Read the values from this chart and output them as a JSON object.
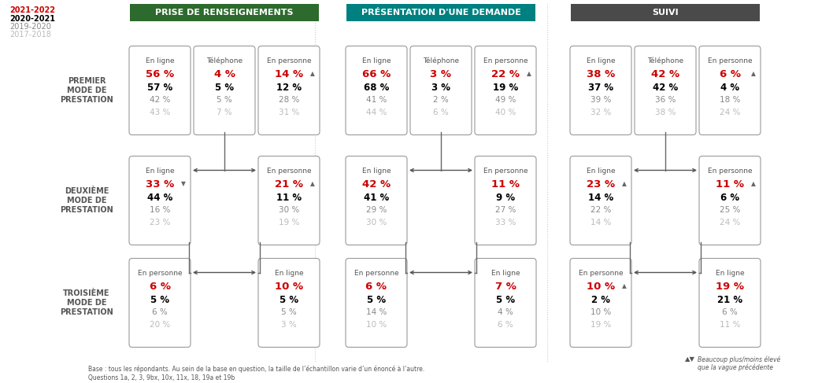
{
  "val_colors": [
    "#cc0000",
    "#000000",
    "#888888",
    "#bbbbbb"
  ],
  "row_labels": [
    "PREMIER\nMODE DE\nPRESTATION",
    "DEUXIÈME\nMODE DE\nPRESTATION",
    "TROISIÈME\nMODE DE\nPRESTATION"
  ],
  "sections": [
    {
      "title": "PRISE DE RENSEIGNEMENTS",
      "header_color": "#2d6a2d",
      "row1": [
        {
          "label": "En ligne",
          "vals": [
            "56 %",
            "57 %",
            "42 %",
            "43 %"
          ],
          "arrow": null
        },
        {
          "label": "Téléphone",
          "vals": [
            "4 %",
            "5 %",
            "5 %",
            "7 %"
          ],
          "arrow": null
        },
        {
          "label": "En personne",
          "vals": [
            "14 %",
            "12 %",
            "28 %",
            "31 %"
          ],
          "arrow": "up"
        }
      ],
      "row2": [
        {
          "label": "En ligne",
          "vals": [
            "33 %",
            "44 %",
            "16 %",
            "23 %"
          ],
          "arrow": "down"
        },
        {
          "label": "En personne",
          "vals": [
            "21 %",
            "11 %",
            "30 %",
            "19 %"
          ],
          "arrow": "up"
        }
      ],
      "row3": [
        {
          "label": "En personne",
          "vals": [
            "6 %",
            "5 %",
            "6 %",
            "20 %"
          ],
          "arrow": null
        },
        {
          "label": "En ligne",
          "vals": [
            "10 %",
            "5 %",
            "5 %",
            "3 %"
          ],
          "arrow": null
        }
      ]
    },
    {
      "title": "PRÉSENTATION D'UNE DEMANDE",
      "header_color": "#008080",
      "row1": [
        {
          "label": "En ligne",
          "vals": [
            "66 %",
            "68 %",
            "41 %",
            "44 %"
          ],
          "arrow": null
        },
        {
          "label": "Téléphone",
          "vals": [
            "3 %",
            "3 %",
            "2 %",
            "6 %"
          ],
          "arrow": null
        },
        {
          "label": "En personne",
          "vals": [
            "22 %",
            "19 %",
            "49 %",
            "40 %"
          ],
          "arrow": "up"
        }
      ],
      "row2": [
        {
          "label": "En ligne",
          "vals": [
            "42 %",
            "41 %",
            "29 %",
            "30 %"
          ],
          "arrow": null
        },
        {
          "label": "En personne",
          "vals": [
            "11 %",
            "9 %",
            "27 %",
            "33 %"
          ],
          "arrow": null
        }
      ],
      "row3": [
        {
          "label": "En personne",
          "vals": [
            "6 %",
            "5 %",
            "14 %",
            "10 %"
          ],
          "arrow": null
        },
        {
          "label": "En ligne",
          "vals": [
            "7 %",
            "5 %",
            "4 %",
            "6 %"
          ],
          "arrow": null
        }
      ]
    },
    {
      "title": "SUIVI",
      "header_color": "#4a4a4a",
      "row1": [
        {
          "label": "En ligne",
          "vals": [
            "38 %",
            "37 %",
            "39 %",
            "32 %"
          ],
          "arrow": null
        },
        {
          "label": "Téléphone",
          "vals": [
            "42 %",
            "42 %",
            "36 %",
            "38 %"
          ],
          "arrow": null
        },
        {
          "label": "En personne",
          "vals": [
            "6 %",
            "4 %",
            "18 %",
            "24 %"
          ],
          "arrow": "up"
        }
      ],
      "row2": [
        {
          "label": "En ligne",
          "vals": [
            "23 %",
            "14 %",
            "22 %",
            "14 %"
          ],
          "arrow": "up"
        },
        {
          "label": "En personne",
          "vals": [
            "11 %",
            "6 %",
            "25 %",
            "24 %"
          ],
          "arrow": "up"
        }
      ],
      "row3": [
        {
          "label": "En personne",
          "vals": [
            "10 %",
            "2 %",
            "10 %",
            "19 %"
          ],
          "arrow": "up"
        },
        {
          "label": "En ligne",
          "vals": [
            "19 %",
            "21 %",
            "6 %",
            "11 %"
          ],
          "arrow": null
        }
      ]
    }
  ],
  "footnote": "Base : tous les répondants. Au sein de la base en question, la taille de l’échantillon varie d’un énoncé à l’autre.\nQuestions 1a, 2, 3, 9bx, 10x, 11x, 18, 19a et 19b",
  "legend_note": "Beaucoup plus/moins élevé\nque la vague précédente",
  "background_color": "#ffffff"
}
